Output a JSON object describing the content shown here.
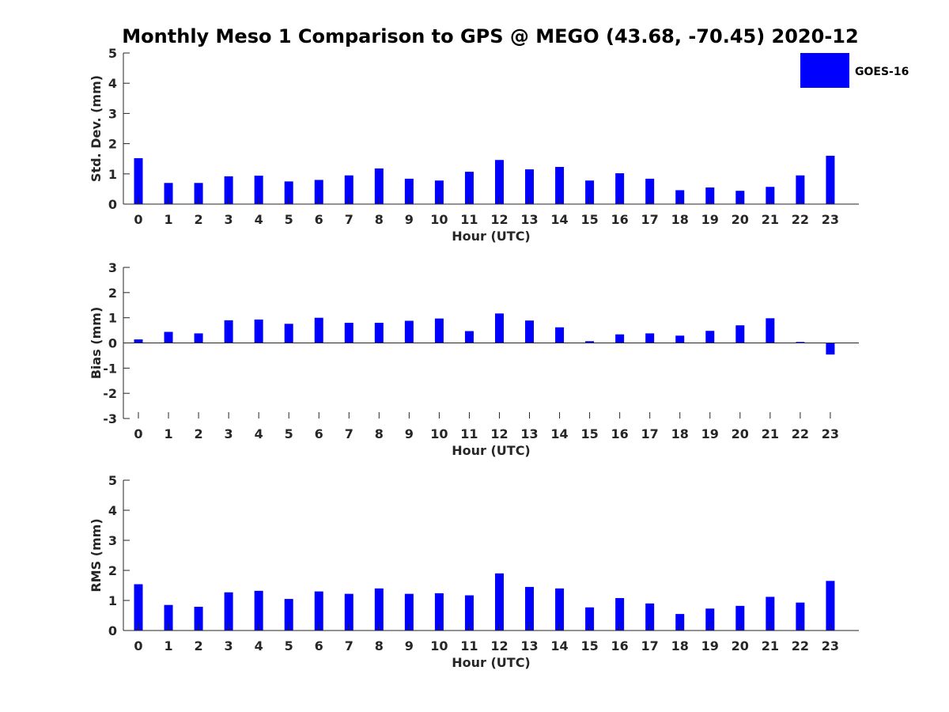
{
  "figure_title": "Monthly Meso 1 Comparison to GPS @ MEGO (43.68, -70.45) 2020-12",
  "legend": {
    "label": "GOES-16",
    "color": "#0000ff"
  },
  "chart_data": [
    {
      "type": "bar",
      "xlabel": "Hour (UTC)",
      "ylabel": "Std. Dev. (mm)",
      "categories": [
        "0",
        "1",
        "2",
        "3",
        "4",
        "5",
        "6",
        "7",
        "8",
        "9",
        "10",
        "11",
        "12",
        "13",
        "14",
        "15",
        "16",
        "17",
        "18",
        "19",
        "20",
        "21",
        "22",
        "23"
      ],
      "series": [
        {
          "name": "GOES-16",
          "color": "#0000ff",
          "values": [
            1.52,
            0.7,
            0.7,
            0.92,
            0.94,
            0.75,
            0.8,
            0.95,
            1.18,
            0.84,
            0.78,
            1.07,
            1.46,
            1.15,
            1.23,
            0.78,
            1.02,
            0.84,
            0.46,
            0.55,
            0.44,
            0.57,
            0.95,
            1.6
          ]
        }
      ],
      "ylim": [
        0,
        5
      ],
      "yticks": [
        0,
        1,
        2,
        3,
        4,
        5
      ],
      "grid": false,
      "legend": "top-right"
    },
    {
      "type": "bar",
      "xlabel": "Hour (UTC)",
      "ylabel": "Bias (mm)",
      "categories": [
        "0",
        "1",
        "2",
        "3",
        "4",
        "5",
        "6",
        "7",
        "8",
        "9",
        "10",
        "11",
        "12",
        "13",
        "14",
        "15",
        "16",
        "17",
        "18",
        "19",
        "20",
        "21",
        "22",
        "23"
      ],
      "series": [
        {
          "name": "GOES-16",
          "color": "#0000ff",
          "values": [
            0.14,
            0.44,
            0.38,
            0.9,
            0.93,
            0.76,
            1.0,
            0.8,
            0.8,
            0.88,
            0.97,
            0.47,
            1.17,
            0.89,
            0.62,
            0.07,
            0.34,
            0.38,
            0.29,
            0.48,
            0.7,
            0.98,
            0.04,
            -0.46
          ]
        }
      ],
      "ylim": [
        -3,
        3
      ],
      "yticks": [
        -3,
        -2,
        -1,
        0,
        1,
        2,
        3
      ],
      "grid": false
    },
    {
      "type": "bar",
      "xlabel": "Hour (UTC)",
      "ylabel": "RMS (mm)",
      "categories": [
        "0",
        "1",
        "2",
        "3",
        "4",
        "5",
        "6",
        "7",
        "8",
        "9",
        "10",
        "11",
        "12",
        "13",
        "14",
        "15",
        "16",
        "17",
        "18",
        "19",
        "20",
        "21",
        "22",
        "23"
      ],
      "series": [
        {
          "name": "GOES-16",
          "color": "#0000ff",
          "values": [
            1.54,
            0.85,
            0.79,
            1.27,
            1.32,
            1.05,
            1.3,
            1.22,
            1.4,
            1.22,
            1.24,
            1.17,
            1.9,
            1.45,
            1.4,
            0.77,
            1.08,
            0.9,
            0.55,
            0.73,
            0.82,
            1.12,
            0.93,
            1.65
          ]
        }
      ],
      "ylim": [
        0,
        5
      ],
      "yticks": [
        0,
        1,
        2,
        3,
        4,
        5
      ],
      "grid": false
    }
  ]
}
